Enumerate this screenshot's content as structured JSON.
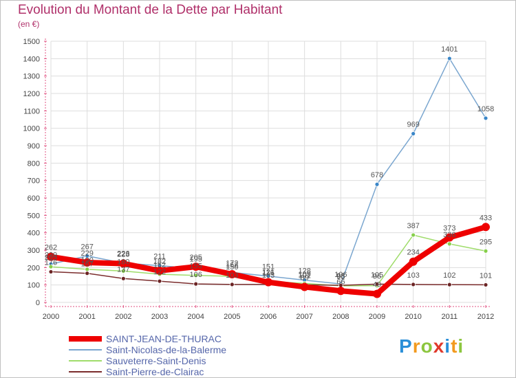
{
  "header": {
    "title": "Evolution du Montant de la Dette par Habitant",
    "unit": "(en €)"
  },
  "logo": {
    "letters": [
      "P",
      "r",
      "o",
      "x",
      "i",
      "t",
      "i"
    ],
    "colors": [
      "#2a8fd8",
      "#f29a1f",
      "#8cc63f",
      "#e0392b",
      "#2a8fd8",
      "#f29a1f",
      "#8cc63f"
    ]
  },
  "chart_data": {
    "type": "line",
    "title": "Evolution du Montant de la Dette par Habitant",
    "ylabel": "(en €)",
    "xlabel": "",
    "ylim": [
      0,
      1500
    ],
    "yticks": [
      0,
      100,
      200,
      300,
      400,
      500,
      600,
      700,
      800,
      900,
      1000,
      1100,
      1200,
      1300,
      1400,
      1500
    ],
    "x": [
      "2000",
      "2001",
      "2002",
      "2003",
      "2004",
      "2005",
      "2006",
      "2007",
      "2008",
      "2009",
      "2010",
      "2011",
      "2012"
    ],
    "series": [
      {
        "name": "Saint-Nicolas-de-la-Balerme",
        "color": "#7aa6cf",
        "marker": "#3a86c8",
        "values": [
          220,
          267,
          226,
          211,
          195,
          172,
          151,
          128,
          106,
          678,
          969,
          1401,
          1058
        ]
      },
      {
        "name": "Sauveterre-Saint-Denis",
        "color": "#9fdc6a",
        "marker": "#86cf4a",
        "values": [
          205,
          190,
          180,
          162,
          155,
          150,
          121,
          109,
          95,
          96,
          387,
          336,
          295
        ]
      },
      {
        "name": "Saint-Pierre-de-Clairac",
        "color": "#7a2b2b",
        "marker": "#6b2424",
        "values": [
          176,
          167,
          137,
          122,
          106,
          103,
          103,
          101,
          98,
          105,
          103,
          102,
          101
        ]
      },
      {
        "name": "SAINT-JEAN-DE-THURAC",
        "color": "#ee0000",
        "marker": "#ee0000",
        "values": [
          262,
          229,
          223,
          182,
          205,
          162,
          116,
          89,
          66,
          49,
          234,
          373,
          433
        ]
      }
    ],
    "legend": [
      "SAINT-JEAN-DE-THURAC",
      "Saint-Nicolas-de-la-Balerme",
      "Sauveterre-Saint-Denis",
      "Saint-Pierre-de-Clairac"
    ]
  }
}
